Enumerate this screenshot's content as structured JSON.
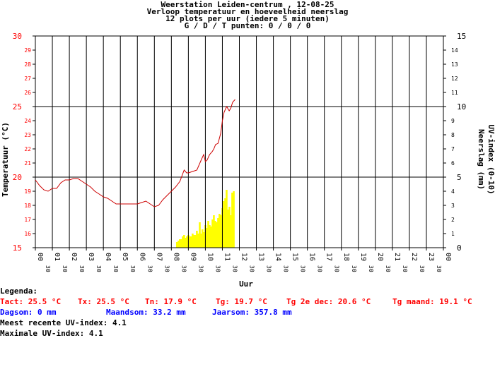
{
  "header": {
    "title": "Weerstation Leiden-centrum , 12-08-25",
    "subtitle": "Verloop temperatuur en hoeveelheid neerslag",
    "line3": "12 plots per uur (iedere 5 minuten)",
    "line4": "G / D / T punten: 0 / 0 / 0"
  },
  "legend": {
    "heading": "Legenda:",
    "tact": "Tact: 25.5 °C",
    "tx": "Tx: 25.5 °C",
    "tn": "Tn: 17.9 °C",
    "tg": "Tg: 19.7 °C",
    "tg2dec": "Tg 2e dec: 20.6 °C",
    "tgmaand": "Tg maand: 19.1 °C",
    "dagsom": "Dagsom: 0 mm",
    "maandsom": "Maandsom: 33.2 mm",
    "jaarsom": "Jaarsom: 357.8 mm",
    "uv_recent": "Meest recente UV-index: 4.1",
    "uv_max": "Maximale UV-index: 4.1"
  },
  "colors": {
    "temperature": "#cc0000",
    "uv": "#ffff00",
    "left_axis": "#ff0000",
    "grid": "#000000"
  },
  "chart_data": {
    "type": "line",
    "xlabel": "Uur",
    "ylabel_left": "Temperatuur (°C)",
    "ylabel_right": [
      "Neerslag (mm)",
      "UV-index (0-10)"
    ],
    "ylim_left": [
      15,
      30
    ],
    "ylim_right": [
      0,
      15
    ],
    "x_tick_labels": [
      "00",
      "01",
      "02",
      "03",
      "04",
      "05",
      "06",
      "07",
      "08",
      "09",
      "10",
      "11",
      "12",
      "13",
      "14",
      "15",
      "16",
      "17",
      "18",
      "19",
      "20",
      "21",
      "22",
      "23",
      "00"
    ],
    "x_half_label": "30",
    "y_left_ticks": [
      "15",
      "16",
      "17",
      "18",
      "19",
      "20",
      "21",
      "22",
      "23",
      "24",
      "25",
      "26",
      "27",
      "28",
      "29",
      "30"
    ],
    "y_right_ticks": [
      "0",
      "1",
      "2",
      "3",
      "4",
      "5",
      "6",
      "7",
      "8",
      "9",
      "10",
      "11",
      "12",
      "13",
      "14",
      "15"
    ],
    "series": [
      {
        "name": "Temperatuur",
        "axis": "left",
        "x_hours": [
          0,
          0.25,
          0.5,
          0.75,
          1,
          1.25,
          1.5,
          1.75,
          2,
          2.25,
          2.5,
          2.75,
          3,
          3.25,
          3.5,
          3.75,
          4,
          4.25,
          4.5,
          4.75,
          5,
          5.25,
          5.5,
          5.75,
          6,
          6.25,
          6.5,
          6.75,
          7,
          7.25,
          7.5,
          7.75,
          8,
          8.25,
          8.5,
          8.75,
          8.9,
          9,
          9.25,
          9.5,
          9.75,
          9.9,
          10,
          10.1,
          10.25,
          10.4,
          10.5,
          10.6,
          10.75,
          10.9,
          11,
          11.1,
          11.25,
          11.4,
          11.5,
          11.6,
          11.75
        ],
        "values": [
          19.8,
          19.4,
          19.1,
          19.0,
          19.2,
          19.2,
          19.6,
          19.8,
          19.8,
          19.9,
          19.9,
          19.7,
          19.5,
          19.3,
          19.0,
          18.8,
          18.6,
          18.5,
          18.3,
          18.1,
          18.1,
          18.1,
          18.1,
          18.1,
          18.1,
          18.2,
          18.3,
          18.1,
          17.9,
          18.0,
          18.4,
          18.7,
          19.0,
          19.3,
          19.7,
          20.5,
          20.3,
          20.3,
          20.4,
          20.5,
          21.2,
          21.6,
          21.1,
          21.2,
          21.6,
          21.8,
          22.0,
          22.3,
          22.4,
          23.1,
          24.0,
          24.6,
          25.0,
          24.7,
          24.9,
          25.3,
          25.5
        ]
      },
      {
        "name": "UV-index",
        "axis": "right",
        "type": "bar",
        "x_hours": [
          8.33,
          8.42,
          8.5,
          8.58,
          8.67,
          8.75,
          8.83,
          8.92,
          9,
          9.08,
          9.17,
          9.25,
          9.33,
          9.42,
          9.5,
          9.58,
          9.67,
          9.75,
          9.83,
          9.92,
          10,
          10.08,
          10.17,
          10.25,
          10.33,
          10.42,
          10.5,
          10.58,
          10.67,
          10.75,
          10.83,
          10.92,
          11,
          11.08,
          11.17,
          11.25,
          11.33,
          11.42,
          11.5,
          11.58,
          11.67
        ],
        "values": [
          0.4,
          0.5,
          0.6,
          0.6,
          0.8,
          0.9,
          0.7,
          0.8,
          0.9,
          0.8,
          0.8,
          1.0,
          0.9,
          0.9,
          1.2,
          1.0,
          1.8,
          1.0,
          1.3,
          1.1,
          1.6,
          1.4,
          1.9,
          1.6,
          1.5,
          2.0,
          2.3,
          1.9,
          1.8,
          2.1,
          2.4,
          2.3,
          2.8,
          3.3,
          3.5,
          4.1,
          2.7,
          2.9,
          2.3,
          3.9,
          4.0
        ]
      }
    ],
    "grid": true,
    "legend": "below"
  }
}
